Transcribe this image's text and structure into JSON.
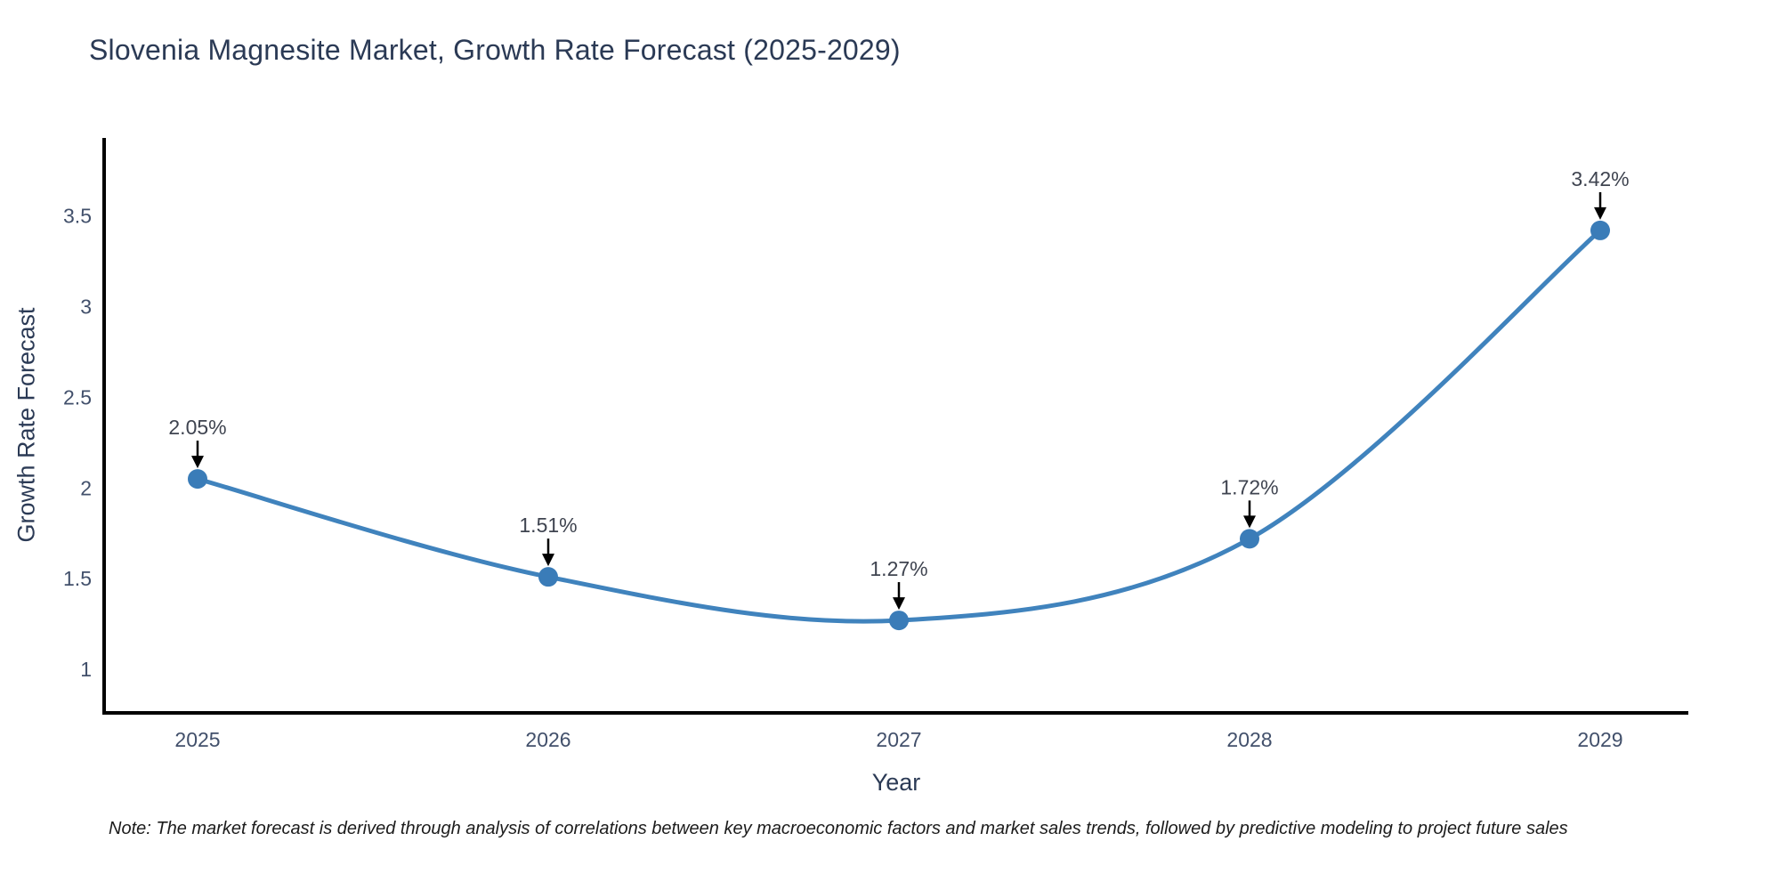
{
  "chart": {
    "title": "Slovenia Magnesite Market, Growth Rate Forecast (2025-2029)",
    "note": "Note: The market forecast is derived through analysis of correlations between key macroeconomic factors and market sales trends, followed by predictive modeling to project future sales"
  },
  "chart_data": {
    "type": "line",
    "title": "Slovenia Magnesite Market, Growth Rate Forecast (2025-2029)",
    "categories": [
      "2025",
      "2026",
      "2027",
      "2028",
      "2029"
    ],
    "series": [
      {
        "name": "Growth Rate Forecast",
        "values": [
          2.05,
          1.51,
          1.27,
          1.72,
          3.42
        ]
      }
    ],
    "point_labels": [
      "2.05%",
      "1.51%",
      "1.27%",
      "1.72%",
      "3.42%"
    ],
    "xlabel": "Year",
    "ylabel": "Growth Rate Forecast",
    "y_ticks": [
      1,
      1.5,
      2,
      2.5,
      3,
      3.5
    ],
    "ylim": [
      0.76,
      3.93
    ],
    "grid": false,
    "legend": "none",
    "line_smooth": true,
    "line_color": "#4083bd",
    "marker_color": "#3a7cb8",
    "axis_color": "#000000",
    "annotation_arrow_color": "#000000"
  }
}
